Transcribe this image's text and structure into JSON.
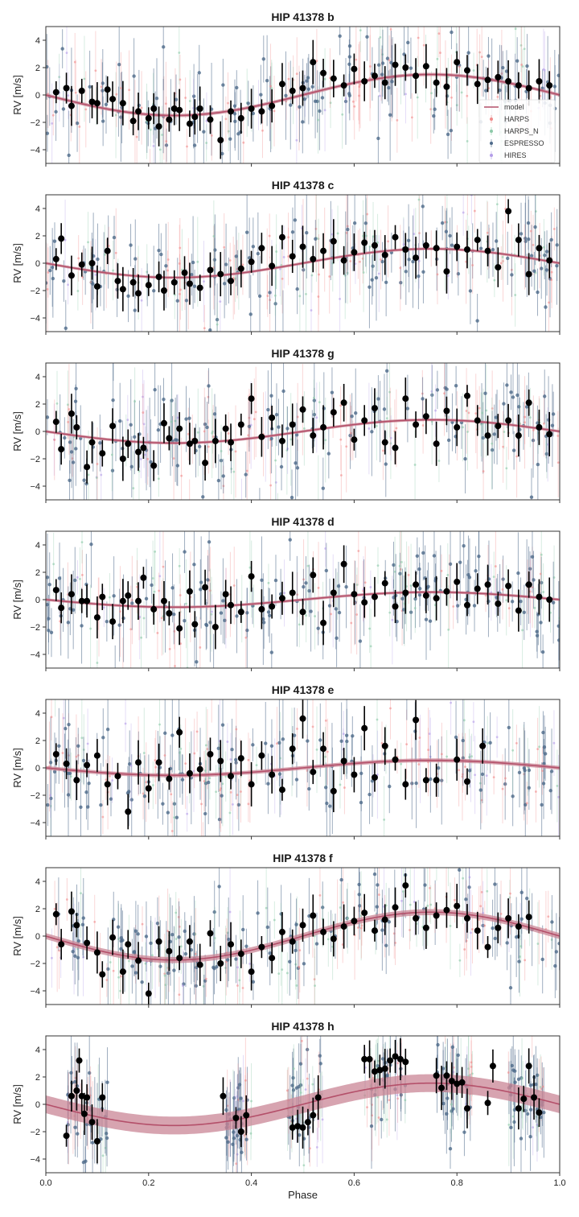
{
  "colors": {
    "model": "#b4506a",
    "model_band": "#c98595",
    "HARPS": "#f08a8a",
    "HARPS_N": "#8cc9a8",
    "ESPRESSO": "#4e6a8a",
    "HIRES": "#b49de8",
    "binned": "#000000",
    "frame": "#333333"
  },
  "legend": {
    "entries": [
      "model",
      "HARPS",
      "HARPS_N",
      "ESPRESSO",
      "HIRES"
    ]
  },
  "chart_data": [
    {
      "type": "scatter",
      "title": "HIP 41378 b",
      "ylabel": "RV [m/s]",
      "xlabel": "",
      "xlim": [
        0.0,
        1.0
      ],
      "ylim": [
        -5,
        5
      ],
      "yticks": [
        -4,
        -2,
        0,
        2,
        4
      ],
      "model": {
        "amplitude": 1.5,
        "phase_zero": 0.0,
        "band": 0.12
      },
      "raw_spread": 1.8,
      "series": [
        {
          "name": "model",
          "x": [],
          "y": []
        },
        {
          "name": "HARPS",
          "x": [],
          "y": []
        },
        {
          "name": "HARPS_N",
          "x": [],
          "y": []
        },
        {
          "name": "ESPRESSO",
          "x": [],
          "y": []
        },
        {
          "name": "HIRES",
          "x": [],
          "y": []
        }
      ],
      "binned": {
        "x": [
          0.02,
          0.04,
          0.05,
          0.07,
          0.09,
          0.1,
          0.12,
          0.13,
          0.15,
          0.17,
          0.18,
          0.2,
          0.21,
          0.22,
          0.24,
          0.25,
          0.26,
          0.28,
          0.29,
          0.3,
          0.32,
          0.34,
          0.36,
          0.38,
          0.4,
          0.42,
          0.44,
          0.46,
          0.48,
          0.5,
          0.52,
          0.54,
          0.56,
          0.58,
          0.6,
          0.62,
          0.64,
          0.66,
          0.68,
          0.7,
          0.72,
          0.74,
          0.76,
          0.78,
          0.8,
          0.82,
          0.84,
          0.86,
          0.88,
          0.9,
          0.92,
          0.94,
          0.96,
          0.98
        ],
        "y": [
          0.2,
          0.5,
          -0.8,
          0.3,
          -0.5,
          -0.6,
          0.4,
          -0.3,
          -0.6,
          -1.9,
          -1.2,
          -1.7,
          -1.0,
          -2.3,
          -1.8,
          -1.0,
          -1.1,
          -2.1,
          -1.6,
          -1.0,
          -1.8,
          -3.3,
          -1.2,
          -1.7,
          -1.0,
          -1.2,
          -0.8,
          0.8,
          0.3,
          0.5,
          2.4,
          1.6,
          1.2,
          0.7,
          1.9,
          1.0,
          1.4,
          0.9,
          2.2,
          2.0,
          1.4,
          2.1,
          0.9,
          0.6,
          2.4,
          1.8,
          0.8,
          1.1,
          1.3,
          1.0,
          0.7,
          0.5,
          1.0,
          0.7
        ]
      }
    },
    {
      "type": "scatter",
      "title": "HIP 41378 c",
      "ylabel": "RV [m/s]",
      "xlabel": "",
      "xlim": [
        0.0,
        1.0
      ],
      "ylim": [
        -5,
        5
      ],
      "yticks": [
        -4,
        -2,
        0,
        2,
        4
      ],
      "model": {
        "amplitude": 1.05,
        "phase_zero": 0.0,
        "band": 0.1
      },
      "raw_spread": 1.7,
      "series": [],
      "binned": {
        "x": [
          0.02,
          0.03,
          0.05,
          0.07,
          0.09,
          0.1,
          0.12,
          0.14,
          0.15,
          0.17,
          0.18,
          0.2,
          0.22,
          0.23,
          0.25,
          0.27,
          0.28,
          0.3,
          0.32,
          0.34,
          0.36,
          0.38,
          0.4,
          0.42,
          0.44,
          0.46,
          0.48,
          0.5,
          0.52,
          0.54,
          0.56,
          0.58,
          0.6,
          0.62,
          0.64,
          0.66,
          0.68,
          0.7,
          0.72,
          0.74,
          0.76,
          0.78,
          0.8,
          0.82,
          0.84,
          0.86,
          0.88,
          0.9,
          0.92,
          0.94,
          0.96,
          0.98
        ],
        "y": [
          0.3,
          1.8,
          -0.9,
          -0.1,
          0.0,
          -1.7,
          0.9,
          -1.3,
          -1.9,
          -1.4,
          -2.2,
          -1.6,
          -1.0,
          -2.0,
          -1.4,
          -0.7,
          -1.5,
          -1.8,
          -0.5,
          -0.8,
          -1.3,
          -0.4,
          0.1,
          1.1,
          -0.2,
          1.9,
          0.5,
          1.2,
          0.3,
          0.9,
          1.6,
          0.2,
          0.8,
          1.5,
          1.3,
          0.6,
          1.9,
          1.0,
          0.4,
          1.3,
          1.1,
          -0.6,
          1.2,
          1.0,
          1.7,
          0.9,
          -0.3,
          3.8,
          1.7,
          -0.8,
          1.1,
          0.2
        ]
      }
    },
    {
      "type": "scatter",
      "title": "HIP 41378 g",
      "ylabel": "RV [m/s]",
      "xlabel": "",
      "xlim": [
        0.0,
        1.0
      ],
      "ylim": [
        -5,
        5
      ],
      "yticks": [
        -4,
        -2,
        0,
        2,
        4
      ],
      "model": {
        "amplitude": 0.85,
        "phase_zero": 0.0,
        "band": 0.1
      },
      "raw_spread": 1.8,
      "series": [],
      "binned": {
        "x": [
          0.02,
          0.03,
          0.05,
          0.06,
          0.08,
          0.09,
          0.11,
          0.13,
          0.15,
          0.16,
          0.18,
          0.19,
          0.21,
          0.23,
          0.24,
          0.26,
          0.28,
          0.29,
          0.31,
          0.33,
          0.35,
          0.36,
          0.38,
          0.4,
          0.42,
          0.44,
          0.46,
          0.48,
          0.5,
          0.52,
          0.54,
          0.56,
          0.58,
          0.6,
          0.62,
          0.64,
          0.66,
          0.68,
          0.7,
          0.72,
          0.74,
          0.76,
          0.78,
          0.8,
          0.82,
          0.84,
          0.86,
          0.88,
          0.9,
          0.92,
          0.94,
          0.96,
          0.98
        ],
        "y": [
          0.7,
          -1.3,
          1.3,
          0.3,
          -2.6,
          -0.8,
          -1.6,
          0.4,
          -2.0,
          -0.9,
          -1.5,
          -1.2,
          -2.5,
          0.6,
          -0.5,
          0.2,
          -0.9,
          -0.7,
          -2.3,
          -0.7,
          0.2,
          -0.8,
          0.5,
          2.4,
          -0.4,
          1.0,
          -0.7,
          0.5,
          1.6,
          -0.3,
          0.3,
          1.4,
          2.1,
          -0.6,
          0.8,
          1.7,
          -0.8,
          -1.2,
          2.4,
          0.5,
          1.1,
          -0.9,
          1.5,
          0.3,
          2.6,
          0.8,
          -0.3,
          0.4,
          0.8,
          -0.3,
          2.1,
          0.3,
          -0.2
        ]
      }
    },
    {
      "type": "scatter",
      "title": "HIP 41378 d",
      "ylabel": "RV [m/s]",
      "xlabel": "",
      "xlim": [
        0.0,
        1.0
      ],
      "ylim": [
        -5,
        5
      ],
      "yticks": [
        -4,
        -2,
        0,
        2,
        4
      ],
      "model": {
        "amplitude": 0.55,
        "phase_zero": 0.0,
        "band": 0.1
      },
      "raw_spread": 1.8,
      "series": [],
      "binned": {
        "x": [
          0.02,
          0.03,
          0.05,
          0.07,
          0.08,
          0.1,
          0.11,
          0.13,
          0.15,
          0.16,
          0.18,
          0.19,
          0.21,
          0.23,
          0.24,
          0.26,
          0.28,
          0.29,
          0.31,
          0.33,
          0.35,
          0.36,
          0.38,
          0.4,
          0.42,
          0.44,
          0.46,
          0.48,
          0.5,
          0.52,
          0.54,
          0.56,
          0.58,
          0.6,
          0.62,
          0.64,
          0.66,
          0.68,
          0.7,
          0.72,
          0.74,
          0.76,
          0.78,
          0.8,
          0.82,
          0.84,
          0.86,
          0.88,
          0.9,
          0.92,
          0.94,
          0.96,
          0.98
        ],
        "y": [
          0.7,
          -0.6,
          0.4,
          -0.1,
          -0.1,
          -1.3,
          0.2,
          -1.6,
          -0.1,
          0.3,
          -0.1,
          1.6,
          -0.7,
          -0.1,
          -1.0,
          -2.1,
          0.6,
          -1.8,
          0.9,
          -2.0,
          0.4,
          -0.4,
          -0.9,
          1.7,
          -0.7,
          -0.5,
          0.1,
          0.5,
          -0.9,
          1.8,
          -1.7,
          0.5,
          2.6,
          0.4,
          -0.2,
          0.2,
          1.2,
          -0.5,
          0.5,
          1.1,
          0.3,
          0.1,
          0.6,
          1.3,
          -0.4,
          0.8,
          1.1,
          -0.3,
          1.0,
          -0.8,
          1.1,
          0.2,
          0.0
        ]
      }
    },
    {
      "type": "scatter",
      "title": "HIP 41378 e",
      "ylabel": "RV [m/s]",
      "xlabel": "",
      "xlim": [
        0.0,
        1.0
      ],
      "ylim": [
        -5,
        5
      ],
      "yticks": [
        -4,
        -2,
        0,
        2,
        4
      ],
      "model": {
        "amplitude": 0.55,
        "phase_zero": 0.0,
        "band": 0.14
      },
      "raw_spread": 1.9,
      "series": [],
      "binned": {
        "x": [
          0.02,
          0.04,
          0.06,
          0.08,
          0.1,
          0.12,
          0.14,
          0.16,
          0.18,
          0.2,
          0.22,
          0.24,
          0.26,
          0.28,
          0.3,
          0.32,
          0.34,
          0.36,
          0.38,
          0.4,
          0.42,
          0.44,
          0.46,
          0.48,
          0.5,
          0.52,
          0.54,
          0.56,
          0.58,
          0.6,
          0.62,
          0.64,
          0.66,
          0.68,
          0.7,
          0.72,
          0.74,
          0.76,
          0.8,
          0.82,
          0.85
        ],
        "y": [
          1.0,
          0.3,
          -0.9,
          0.2,
          0.9,
          -1.2,
          -0.6,
          -3.2,
          0.4,
          -1.5,
          0.4,
          -0.8,
          2.6,
          -0.4,
          -0.1,
          1.0,
          0.5,
          -0.6,
          0.7,
          -1.2,
          0.9,
          -0.5,
          -1.6,
          1.4,
          3.6,
          -0.3,
          1.4,
          -1.7,
          0.5,
          -0.5,
          2.9,
          -0.7,
          1.6,
          0.6,
          -1.2,
          3.5,
          -0.9,
          -0.9,
          0.6,
          -1.0,
          1.6
        ]
      }
    },
    {
      "type": "scatter",
      "title": "HIP 41378 f",
      "ylabel": "RV [m/s]",
      "xlabel": "",
      "xlim": [
        0.0,
        1.0
      ],
      "ylim": [
        -5,
        5
      ],
      "yticks": [
        -4,
        -2,
        0,
        2,
        4
      ],
      "model": {
        "amplitude": 1.75,
        "phase_zero": 0.0,
        "band": 0.22
      },
      "raw_spread": 1.8,
      "series": [],
      "binned": {
        "x": [
          0.02,
          0.03,
          0.05,
          0.06,
          0.08,
          0.1,
          0.11,
          0.13,
          0.15,
          0.16,
          0.18,
          0.2,
          0.22,
          0.24,
          0.26,
          0.28,
          0.3,
          0.32,
          0.34,
          0.36,
          0.38,
          0.4,
          0.42,
          0.44,
          0.46,
          0.48,
          0.5,
          0.52,
          0.54,
          0.56,
          0.58,
          0.6,
          0.62,
          0.64,
          0.66,
          0.68,
          0.7,
          0.72,
          0.74,
          0.76,
          0.78,
          0.8,
          0.82,
          0.84,
          0.86,
          0.88,
          0.9,
          0.92,
          0.94
        ],
        "y": [
          1.6,
          -0.6,
          1.8,
          0.8,
          -0.5,
          -1.2,
          -2.8,
          -0.1,
          -2.6,
          -0.6,
          -1.8,
          -4.2,
          -0.4,
          -1.1,
          -1.6,
          -0.4,
          -2.1,
          0.2,
          -2.0,
          -0.6,
          -1.3,
          -2.6,
          -0.8,
          -1.6,
          0.3,
          -0.4,
          0.8,
          1.5,
          0.3,
          -0.2,
          0.7,
          1.1,
          1.7,
          0.4,
          1.2,
          2.1,
          3.7,
          1.3,
          0.6,
          1.5,
          1.9,
          2.2,
          1.3,
          0.4,
          -0.8,
          0.6,
          1.3,
          0.7,
          1.4
        ]
      }
    },
    {
      "type": "scatter",
      "title": "HIP 41378 h",
      "ylabel": "RV [m/s]",
      "xlabel": "Phase",
      "xlim": [
        0.0,
        1.0
      ],
      "ylim": [
        -5,
        5
      ],
      "xticks": [
        0.0,
        0.2,
        0.4,
        0.6,
        0.8,
        1.0
      ],
      "yticks": [
        -4,
        -2,
        0,
        2,
        4
      ],
      "model": {
        "amplitude": 1.55,
        "phase_zero": 0.0,
        "band": 0.65
      },
      "raw_spread": 1.6,
      "clusters": [
        [
          0.04,
          0.12
        ],
        [
          0.35,
          0.4
        ],
        [
          0.47,
          0.54
        ],
        [
          0.62,
          0.7
        ],
        [
          0.76,
          0.83
        ],
        [
          0.9,
          0.97
        ]
      ],
      "series": [],
      "binned": {
        "x": [
          0.04,
          0.05,
          0.06,
          0.065,
          0.07,
          0.075,
          0.08,
          0.09,
          0.1,
          0.11,
          0.345,
          0.37,
          0.38,
          0.39,
          0.48,
          0.49,
          0.5,
          0.51,
          0.52,
          0.53,
          0.62,
          0.63,
          0.64,
          0.65,
          0.66,
          0.67,
          0.68,
          0.69,
          0.7,
          0.76,
          0.77,
          0.78,
          0.79,
          0.8,
          0.81,
          0.82,
          0.86,
          0.87,
          0.92,
          0.93,
          0.94,
          0.95,
          0.96
        ],
        "y": [
          -2.3,
          0.6,
          1.0,
          3.2,
          0.6,
          -0.7,
          0.5,
          -1.3,
          -2.7,
          0.5,
          0.6,
          -1.0,
          -2.0,
          -0.8,
          -1.7,
          -1.6,
          -1.7,
          -1.3,
          -0.8,
          0.5,
          3.3,
          3.3,
          2.4,
          2.5,
          2.6,
          3.2,
          3.5,
          3.3,
          3.1,
          2.1,
          1.2,
          2.1,
          1.7,
          1.5,
          1.6,
          -0.3,
          0.1,
          2.8,
          -0.3,
          0.4,
          2.8,
          0.5,
          -0.6
        ]
      }
    }
  ]
}
